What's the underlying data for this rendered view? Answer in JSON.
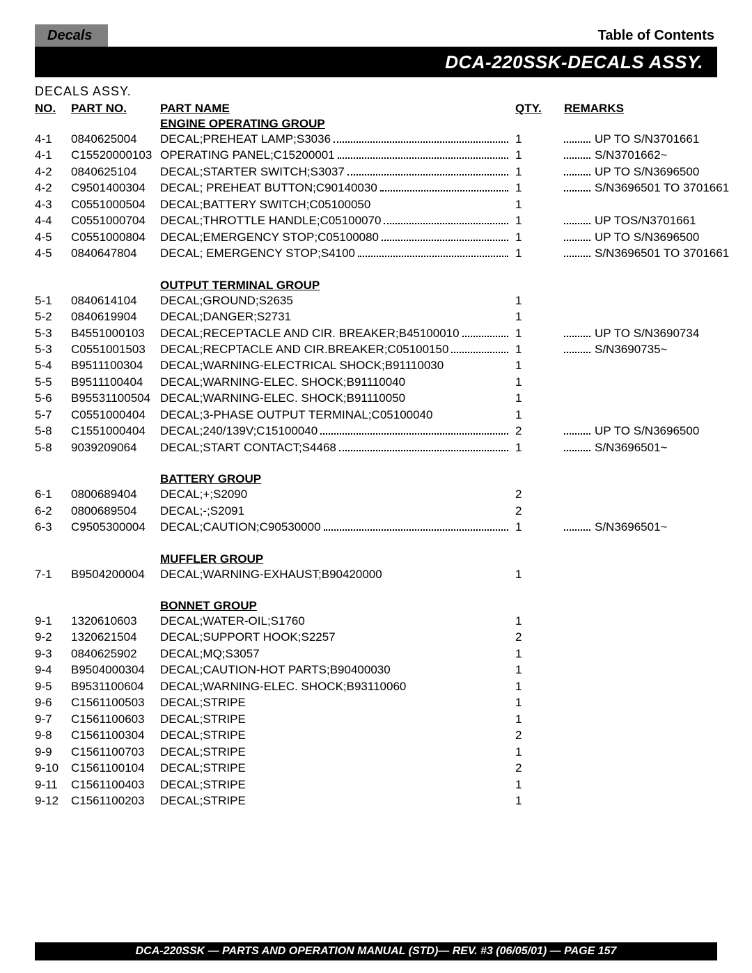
{
  "header": {
    "tab": "Decals",
    "toc": "Table of Contents",
    "title": "DCA-220SSK-DECALS ASSY.",
    "subtitle": "DECALS  ASSY."
  },
  "columns": {
    "no": "NO.",
    "part": "PART NO.",
    "name": "PART NAME",
    "qty": "QTY.",
    "remarks": "REMARKS"
  },
  "groups": [
    {
      "title": "ENGINE OPERATING GROUP",
      "rows": [
        {
          "no": "4-1",
          "part": "0840625004",
          "name": "DECAL;PREHEAT LAMP;S3036",
          "qty": "1",
          "rem": "UP TO S/N3701661",
          "dots": true
        },
        {
          "no": "4-1",
          "part": "C15520000103",
          "name": "OPERATING PANEL;C15200001",
          "qty": "1",
          "rem": "S/N3701662~",
          "dots": true
        },
        {
          "no": "4-2",
          "part": "0840625104",
          "name": "DECAL;STARTER SWITCH;S3037",
          "qty": "1",
          "rem": "UP TO S/N3696500",
          "dots": true
        },
        {
          "no": "4-2",
          "part": "C9501400304",
          "name": "DECAL; PREHEAT BUTTON;C90140030",
          "qty": "1",
          "rem": "S/N3696501 TO 3701661",
          "dots": true
        },
        {
          "no": "4-3",
          "part": "C0551000504",
          "name": "DECAL;BATTERY SWITCH;C05100050",
          "qty": "1",
          "rem": "",
          "dots": false
        },
        {
          "no": "4-4",
          "part": "C0551000704",
          "name": "DECAL;THROTTLE HANDLE;C05100070",
          "qty": "1",
          "rem": "UP  TOS/N3701661",
          "dots": true
        },
        {
          "no": "4-5",
          "part": "C0551000804",
          "name": "DECAL;EMERGENCY STOP;C05100080",
          "qty": "1",
          "rem": "UP  TO S/N3696500",
          "dots": true
        },
        {
          "no": "4-5",
          "part": "0840647804",
          "name": "DECAL; EMERGENCY STOP;S4100",
          "qty": "1",
          "rem": "S/N3696501 TO 3701661",
          "dots": true
        }
      ]
    },
    {
      "title": "OUTPUT TERMINAL GROUP",
      "rows": [
        {
          "no": "5-1",
          "part": "0840614104",
          "name": "DECAL;GROUND;S2635",
          "qty": "1",
          "rem": "",
          "dots": false
        },
        {
          "no": "5-2",
          "part": "0840619904",
          "name": "DECAL;DANGER;S2731",
          "qty": "1",
          "rem": "",
          "dots": false
        },
        {
          "no": "5-3",
          "part": "B4551000103",
          "name": "DECAL;RECEPTACLE AND CIR. BREAKER;B45100010",
          "qty": "1",
          "rem": "UP TO S/N3690734",
          "dots": true
        },
        {
          "no": "5-3",
          "part": "C0551001503",
          "name": "DECAL;RECPTACLE AND CIR.BREAKER;C05100150",
          "qty": "1",
          "rem": "S/N3690735~",
          "dots": true
        },
        {
          "no": "5-4",
          "part": "B9511100304",
          "name": "DECAL;WARNING-ELECTRICAL SHOCK;B91110030",
          "qty": "1",
          "rem": "",
          "dots": false
        },
        {
          "no": "5-5",
          "part": "B9511100404",
          "name": "DECAL;WARNING-ELEC. SHOCK;B91110040",
          "qty": "1",
          "rem": "",
          "dots": false
        },
        {
          "no": "5-6",
          "part": "B95531100504",
          "name": "DECAL;WARNING-ELEC. SHOCK;B91110050",
          "qty": "1",
          "rem": "",
          "dots": false
        },
        {
          "no": "5-7",
          "part": "C0551000404",
          "name": "DECAL;3-PHASE OUTPUT TERMINAL;C05100040",
          "qty": "1",
          "rem": "",
          "dots": false
        },
        {
          "no": "5-8",
          "part": "C1551000404",
          "name": "DECAL;240/139V;C15100040",
          "qty": "2",
          "rem": "UP TO S/N3696500",
          "dots": true
        },
        {
          "no": "5-8",
          "part": "9039209064",
          "name": "DECAL;START CONTACT;S4468",
          "qty": "1",
          "rem": "S/N3696501~",
          "dots": true
        }
      ]
    },
    {
      "title": "BATTERY GROUP",
      "rows": [
        {
          "no": "6-1",
          "part": "0800689404",
          "name": "DECAL;+;S2090",
          "qty": "2",
          "rem": "",
          "dots": false
        },
        {
          "no": "6-2",
          "part": "0800689504",
          "name": "DECAL;-;S2091",
          "qty": "2",
          "rem": "",
          "dots": false
        },
        {
          "no": "6-3",
          "part": "C9505300004",
          "name": "DECAL;CAUTION;C90530000",
          "qty": "1",
          "rem": "S/N3696501~",
          "dots": true
        }
      ]
    },
    {
      "title": "MUFFLER GROUP",
      "rows": [
        {
          "no": "7-1",
          "part": "B9504200004",
          "name": "DECAL;WARNING-EXHAUST;B90420000",
          "qty": "1",
          "rem": "",
          "dots": false
        }
      ]
    },
    {
      "title": "BONNET GROUP",
      "rows": [
        {
          "no": "9-1",
          "part": "1320610603",
          "name": "DECAL;WATER-OIL;S1760",
          "qty": "1",
          "rem": "",
          "dots": false
        },
        {
          "no": "9-2",
          "part": "1320621504",
          "name": "DECAL;SUPPORT HOOK;S2257",
          "qty": "2",
          "rem": "",
          "dots": false
        },
        {
          "no": "9-3",
          "part": "0840625902",
          "name": "DECAL;MQ;S3057",
          "qty": "1",
          "rem": "",
          "dots": false
        },
        {
          "no": "9-4",
          "part": "B9504000304",
          "name": "DECAL;CAUTION-HOT PARTS;B90400030",
          "qty": "1",
          "rem": "",
          "dots": false
        },
        {
          "no": "9-5",
          "part": "B9531100604",
          "name": "DECAL;WARNING-ELEC. SHOCK;B93110060",
          "qty": "1",
          "rem": "",
          "dots": false
        },
        {
          "no": "9-6",
          "part": "C1561100503",
          "name": "DECAL;STRIPE",
          "qty": "1",
          "rem": "",
          "dots": false
        },
        {
          "no": "9-7",
          "part": "C1561100603",
          "name": "DECAL;STRIPE",
          "qty": "1",
          "rem": "",
          "dots": false
        },
        {
          "no": "9-8",
          "part": "C1561100304",
          "name": "DECAL;STRIPE",
          "qty": "2",
          "rem": "",
          "dots": false
        },
        {
          "no": "9-9",
          "part": "C1561100703",
          "name": "DECAL;STRIPE",
          "qty": "1",
          "rem": "",
          "dots": false
        },
        {
          "no": "9-10",
          "part": "C1561100104",
          "name": "DECAL;STRIPE",
          "qty": "2",
          "rem": "",
          "dots": false
        },
        {
          "no": "9-11",
          "part": "C1561100403",
          "name": "DECAL;STRIPE",
          "qty": "1",
          "rem": "",
          "dots": false
        },
        {
          "no": "9-12",
          "part": "C1561100203",
          "name": "DECAL;STRIPE",
          "qty": "1",
          "rem": "",
          "dots": false
        }
      ]
    }
  ],
  "footer": "DCA-220SSK — PARTS AND OPERATION  MANUAL (STD)— REV. #3  (06/05/01) — PAGE 157"
}
